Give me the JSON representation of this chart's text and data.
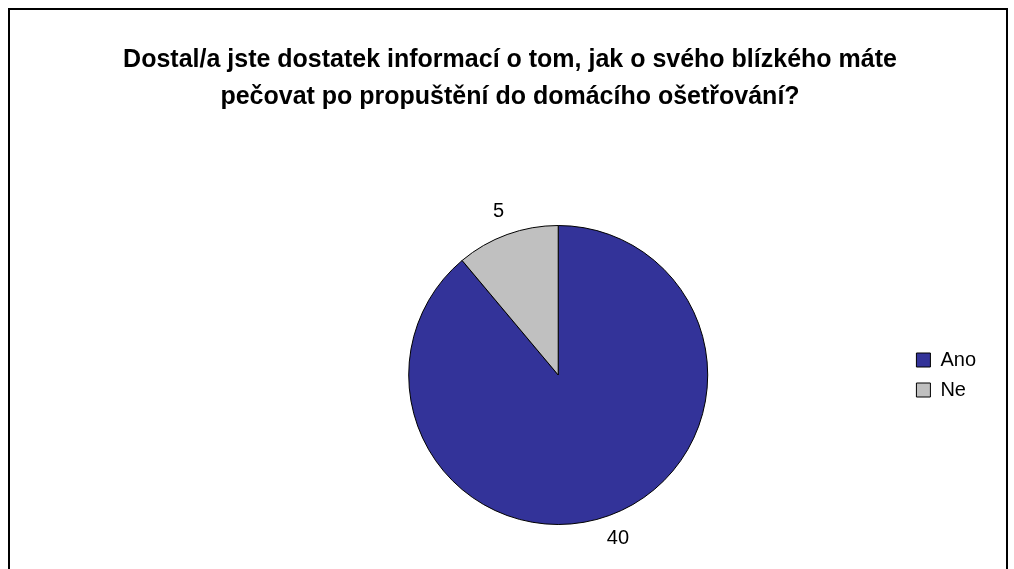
{
  "chart_data": {
    "type": "pie",
    "title": "Dostal/a jste dostatek informací o tom, jak o svého blízkého máte pečovat po propuštění do domácího ošetřování?",
    "categories": [
      "Ano",
      "Ne"
    ],
    "values": [
      40,
      5
    ],
    "colors": [
      "#333399",
      "#c0c0c0"
    ],
    "data_labels": true,
    "legend": "right"
  }
}
